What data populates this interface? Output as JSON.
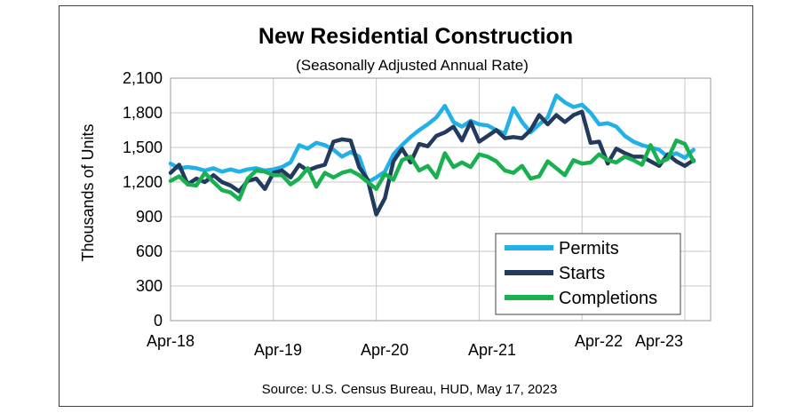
{
  "chart_data": {
    "type": "line",
    "title": "New Residential  Construction",
    "subtitle": "(Seasonally Adjusted Annual Rate)",
    "ylabel": "Thousands of Units",
    "xlabel": "",
    "source": "Source:  U.S. Census Bureau, HUD, May 17, 2023",
    "ylim": [
      0,
      2100
    ],
    "yticks": [
      "0",
      "300",
      "600",
      "900",
      "1,200",
      "1,500",
      "1,800",
      "2,100"
    ],
    "ytick_values": [
      0,
      300,
      600,
      900,
      1200,
      1500,
      1800,
      2100
    ],
    "x_start": "Apr-18",
    "x_end": "Apr-23",
    "xtick_labels": [
      "Apr-18",
      "Apr-19",
      "Apr-20",
      "Apr-21",
      "Apr-22",
      "Apr-23"
    ],
    "grid": true,
    "legend_position": "bottom-right",
    "series": [
      {
        "name": "Permits",
        "color": "#22b0e8",
        "values": [
          1360,
          1320,
          1330,
          1320,
          1300,
          1320,
          1290,
          1310,
          1290,
          1310,
          1320,
          1300,
          1310,
          1330,
          1370,
          1520,
          1490,
          1540,
          1520,
          1480,
          1420,
          1460,
          1420,
          1200,
          1240,
          1290,
          1440,
          1520,
          1590,
          1650,
          1700,
          1760,
          1860,
          1720,
          1680,
          1730,
          1700,
          1690,
          1650,
          1620,
          1840,
          1720,
          1630,
          1700,
          1760,
          1950,
          1890,
          1850,
          1870,
          1800,
          1700,
          1710,
          1680,
          1600,
          1550,
          1520,
          1500,
          1480,
          1420,
          1450,
          1410,
          1480
        ]
      },
      {
        "name": "Starts",
        "color": "#223a5e",
        "values": [
          1280,
          1350,
          1180,
          1230,
          1200,
          1260,
          1200,
          1170,
          1120,
          1210,
          1230,
          1140,
          1280,
          1300,
          1240,
          1350,
          1300,
          1330,
          1350,
          1550,
          1570,
          1560,
          1330,
          1220,
          920,
          1060,
          1380,
          1490,
          1370,
          1530,
          1510,
          1600,
          1630,
          1680,
          1560,
          1720,
          1550,
          1600,
          1650,
          1580,
          1590,
          1580,
          1650,
          1780,
          1700,
          1780,
          1720,
          1780,
          1810,
          1540,
          1550,
          1360,
          1490,
          1450,
          1420,
          1420,
          1380,
          1340,
          1440,
          1380,
          1340,
          1390
        ]
      },
      {
        "name": "Completions",
        "color": "#19b050",
        "values": [
          1210,
          1250,
          1180,
          1170,
          1280,
          1200,
          1130,
          1110,
          1050,
          1230,
          1300,
          1290,
          1260,
          1260,
          1180,
          1230,
          1320,
          1160,
          1280,
          1240,
          1280,
          1300,
          1260,
          1200,
          1140,
          1270,
          1220,
          1390,
          1420,
          1300,
          1340,
          1240,
          1450,
          1330,
          1370,
          1330,
          1440,
          1420,
          1380,
          1300,
          1280,
          1340,
          1230,
          1250,
          1380,
          1320,
          1260,
          1390,
          1360,
          1370,
          1440,
          1390,
          1370,
          1420,
          1390,
          1350,
          1520,
          1370,
          1400,
          1560,
          1530,
          1380
        ]
      }
    ]
  }
}
